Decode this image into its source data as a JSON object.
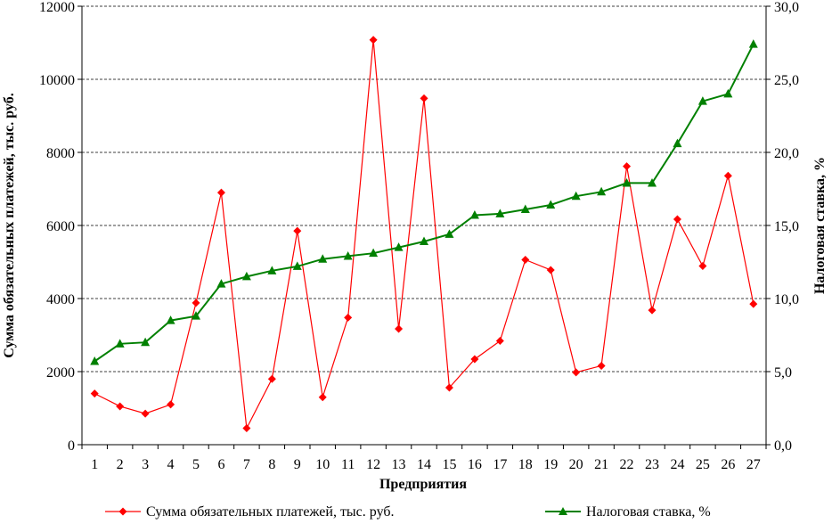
{
  "chart_data": {
    "type": "line",
    "xlabel": "Предприятия",
    "ylabel_left": "Сумма обязательных платежей, тыс. руб.",
    "ylabel_right": "Налоговая ставка, %",
    "categories": [
      "1",
      "2",
      "3",
      "4",
      "5",
      "6",
      "7",
      "8",
      "9",
      "10",
      "11",
      "12",
      "13",
      "14",
      "15",
      "16",
      "17",
      "18",
      "19",
      "20",
      "21",
      "22",
      "23",
      "24",
      "25",
      "26",
      "27"
    ],
    "ylim_left": [
      0,
      12000
    ],
    "ylim_right": [
      0,
      30
    ],
    "yticks_left": [
      "0",
      "2000",
      "4000",
      "6000",
      "8000",
      "10000",
      "12000"
    ],
    "yticks_right": [
      "0,0",
      "5,0",
      "10,0",
      "15,0",
      "20,0",
      "25,0",
      "30,0"
    ],
    "grid": "horizontal dashed",
    "legend_position": "bottom",
    "series": [
      {
        "name": "Сумма обязательных платежей, тыс. руб.",
        "axis": "left",
        "color": "#ff0000",
        "marker": "diamond",
        "values": [
          1400,
          1050,
          850,
          1100,
          3880,
          6900,
          450,
          1800,
          5850,
          1300,
          3480,
          11080,
          3170,
          9480,
          1560,
          2340,
          2840,
          5060,
          4780,
          1980,
          2160,
          7620,
          3680,
          6170,
          4890,
          7360,
          3850
        ]
      },
      {
        "name": "Налоговая ставка, %",
        "axis": "right",
        "color": "#008000",
        "marker": "triangle",
        "values": [
          5.7,
          6.9,
          7.0,
          8.5,
          8.8,
          11.0,
          11.5,
          11.9,
          12.2,
          12.7,
          12.9,
          13.1,
          13.5,
          13.9,
          14.4,
          15.7,
          15.8,
          16.1,
          16.4,
          17.0,
          17.3,
          17.9,
          17.9,
          20.6,
          23.5,
          24.0,
          27.4
        ]
      }
    ]
  }
}
